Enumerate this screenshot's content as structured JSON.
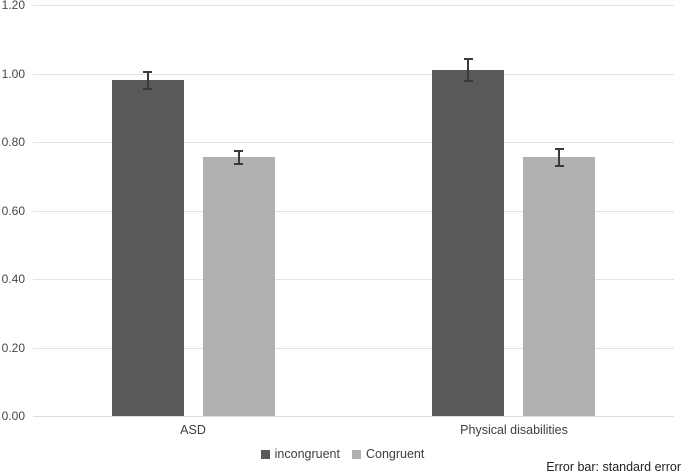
{
  "chart_data": {
    "type": "bar",
    "title": "",
    "categories": [
      "ASD",
      "Physical disabilities"
    ],
    "series": [
      {
        "name": "incongruent",
        "color": "#595959",
        "values": [
          0.98,
          1.01
        ],
        "errors": [
          0.025,
          0.033
        ]
      },
      {
        "name": "Congruent",
        "color": "#b1b1b1",
        "values": [
          0.755,
          0.755
        ],
        "errors": [
          0.02,
          0.025
        ]
      }
    ],
    "xlabel": "",
    "ylabel": "",
    "ylim": [
      0,
      1.2
    ],
    "ytick_values": [
      0,
      0.2,
      0.4,
      0.6,
      0.8,
      1.0,
      1.2
    ],
    "ytick_labels": [
      "0.00",
      "0.20",
      "0.40",
      "0.60",
      "0.80",
      "1.00",
      "1.20"
    ],
    "grid": "horizontal",
    "error_bars": "standard error, capped",
    "legend_position": "bottom-center",
    "footnote": "Error bar: standard error"
  }
}
